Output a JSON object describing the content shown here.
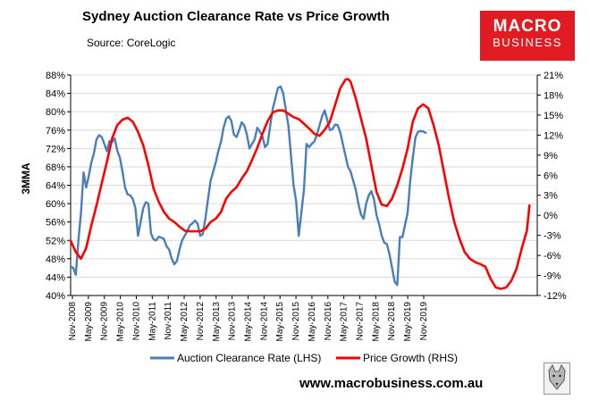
{
  "chart_data": {
    "type": "line",
    "title": "Sydney Auction Clearance Rate vs Price Growth",
    "subtitle": "Source: CoreLogic",
    "ylabel": "3MMA",
    "ylim_left": [
      40,
      88
    ],
    "ylim_right": [
      -12,
      21
    ],
    "y_ticks_left": [
      "88%",
      "84%",
      "80%",
      "76%",
      "72%",
      "68%",
      "64%",
      "60%",
      "56%",
      "52%",
      "48%",
      "44%",
      "40%"
    ],
    "y_ticks_right": [
      "21%",
      "18%",
      "15%",
      "12%",
      "9%",
      "6%",
      "3%",
      "0%",
      "-3%",
      "-6%",
      "-9%",
      "-12%"
    ],
    "x_ticks": [
      "Nov-2008",
      "May-2009",
      "Nov-2009",
      "May-2010",
      "Nov-2010",
      "May-2011",
      "Nov-2011",
      "May-2012",
      "Nov-2012",
      "May-2013",
      "Nov-2013",
      "May-2014",
      "Nov-2014",
      "May-2015",
      "Nov-2015",
      "May-2016",
      "Nov-2016",
      "May-2017",
      "Nov-2017",
      "May-2018",
      "Nov-2018",
      "May-2019",
      "Nov-2019"
    ],
    "grid": true,
    "legend_position": "bottom",
    "series": [
      {
        "name": "Auction Clearance Rate (LHS)",
        "axis": "left",
        "color": "#4a7ebb",
        "points": [
          [
            0,
            46.3
          ],
          [
            1,
            46
          ],
          [
            2,
            44.5
          ],
          [
            3,
            52
          ],
          [
            4,
            58
          ],
          [
            5,
            66.8
          ],
          [
            6,
            63.5
          ],
          [
            7,
            66
          ],
          [
            8,
            69
          ],
          [
            9,
            71
          ],
          [
            10,
            74
          ],
          [
            11,
            74.9
          ],
          [
            12,
            74.5
          ],
          [
            13,
            73
          ],
          [
            14,
            71.4
          ],
          [
            15,
            73.6
          ],
          [
            16,
            73.4
          ],
          [
            17,
            74.2
          ],
          [
            18,
            71.5
          ],
          [
            19,
            70
          ],
          [
            20,
            67
          ],
          [
            21,
            63.5
          ],
          [
            22,
            62
          ],
          [
            23,
            61.8
          ],
          [
            24,
            61
          ],
          [
            25,
            59
          ],
          [
            26,
            53
          ],
          [
            27,
            56
          ],
          [
            28,
            59
          ],
          [
            29,
            60.3
          ],
          [
            30,
            60
          ],
          [
            31,
            53.5
          ],
          [
            32,
            52.2
          ],
          [
            33,
            52
          ],
          [
            34,
            52.8
          ],
          [
            35,
            52.6
          ],
          [
            36,
            52.3
          ],
          [
            37,
            50.7
          ],
          [
            38,
            50
          ],
          [
            39,
            48
          ],
          [
            40,
            46.8
          ],
          [
            41,
            47.5
          ],
          [
            42,
            50
          ],
          [
            43,
            52
          ],
          [
            44,
            53
          ],
          [
            45,
            54
          ],
          [
            46,
            55.3
          ],
          [
            47,
            55.7
          ],
          [
            48,
            56.3
          ],
          [
            49,
            55.6
          ],
          [
            50,
            53
          ],
          [
            51,
            53.4
          ],
          [
            52,
            56.8
          ],
          [
            53,
            61
          ],
          [
            54,
            65
          ],
          [
            55,
            67
          ],
          [
            56,
            69
          ],
          [
            57,
            71.5
          ],
          [
            58,
            73.5
          ],
          [
            59,
            76.5
          ],
          [
            60,
            78.5
          ],
          [
            61,
            79
          ],
          [
            62,
            78
          ],
          [
            63,
            75
          ],
          [
            64,
            74.5
          ],
          [
            65,
            76
          ],
          [
            66,
            77.7
          ],
          [
            67,
            77
          ],
          [
            68,
            75
          ],
          [
            69,
            72
          ],
          [
            70,
            73
          ],
          [
            71,
            74
          ],
          [
            72,
            76.5
          ],
          [
            73,
            75.7
          ],
          [
            74,
            74.6
          ],
          [
            75,
            72.3
          ],
          [
            76,
            73
          ],
          [
            77,
            77
          ],
          [
            78,
            80.7
          ],
          [
            79,
            83
          ],
          [
            80,
            85.2
          ],
          [
            81,
            85.5
          ],
          [
            82,
            84
          ],
          [
            83,
            80.5
          ],
          [
            84,
            77
          ],
          [
            85,
            70.5
          ],
          [
            86,
            64
          ],
          [
            87,
            60.5
          ],
          [
            88,
            53
          ],
          [
            89,
            58
          ],
          [
            90,
            63
          ],
          [
            91,
            73
          ],
          [
            92,
            72.3
          ],
          [
            93,
            73
          ],
          [
            94,
            73.5
          ],
          [
            95,
            75
          ],
          [
            96,
            77
          ],
          [
            97,
            79
          ],
          [
            98,
            80.3
          ],
          [
            99,
            78.2
          ],
          [
            100,
            76
          ],
          [
            101,
            76.2
          ],
          [
            102,
            77.2
          ],
          [
            103,
            77.1
          ],
          [
            104,
            75.5
          ],
          [
            105,
            73
          ],
          [
            106,
            70.5
          ],
          [
            107,
            68
          ],
          [
            108,
            67
          ],
          [
            109,
            65
          ],
          [
            110,
            63
          ],
          [
            111,
            60
          ],
          [
            112,
            57.6
          ],
          [
            113,
            56.7
          ],
          [
            114,
            60
          ],
          [
            115,
            61.8
          ],
          [
            116,
            62.7
          ],
          [
            117,
            61
          ],
          [
            118,
            57.5
          ],
          [
            119,
            55.5
          ],
          [
            120,
            53
          ],
          [
            121,
            51.5
          ],
          [
            122,
            51.2
          ],
          [
            123,
            49
          ],
          [
            124,
            46
          ],
          [
            125,
            43
          ],
          [
            126,
            42.3
          ],
          [
            127,
            52.7
          ],
          [
            128,
            52.7
          ],
          [
            129,
            55.4
          ],
          [
            130,
            58
          ],
          [
            131,
            65
          ],
          [
            132,
            70
          ],
          [
            133,
            74.4
          ],
          [
            134,
            75.6
          ],
          [
            135,
            75.8
          ],
          [
            136,
            75.7
          ],
          [
            137,
            75.4
          ]
        ]
      },
      {
        "name": "Price Growth (RHS)",
        "axis": "right",
        "color": "#ff0000",
        "points": [
          [
            0,
            -3.8
          ],
          [
            2,
            -5.5
          ],
          [
            4,
            -6.5
          ],
          [
            6,
            -4.9
          ],
          [
            8,
            -1.5
          ],
          [
            10,
            1.5
          ],
          [
            12,
            4.8
          ],
          [
            14,
            8
          ],
          [
            16,
            11.5
          ],
          [
            18,
            13.5
          ],
          [
            20,
            14.3
          ],
          [
            22,
            14.6
          ],
          [
            24,
            14
          ],
          [
            26,
            12.5
          ],
          [
            28,
            10.5
          ],
          [
            30,
            7.5
          ],
          [
            32,
            4
          ],
          [
            34,
            2
          ],
          [
            36,
            0.5
          ],
          [
            38,
            -0.5
          ],
          [
            40,
            -1
          ],
          [
            42,
            -1.7
          ],
          [
            44,
            -2.3
          ],
          [
            46,
            -2.4
          ],
          [
            48,
            -2.4
          ],
          [
            50,
            -2.4
          ],
          [
            52,
            -2
          ],
          [
            54,
            -1
          ],
          [
            56,
            -0.5
          ],
          [
            58,
            0.5
          ],
          [
            60,
            2.5
          ],
          [
            62,
            3.5
          ],
          [
            64,
            4.2
          ],
          [
            66,
            5.5
          ],
          [
            68,
            6.6
          ],
          [
            70,
            8.3
          ],
          [
            72,
            10.1
          ],
          [
            74,
            12.2
          ],
          [
            76,
            14.1
          ],
          [
            78,
            15.4
          ],
          [
            80,
            15.7
          ],
          [
            82,
            15.7
          ],
          [
            84,
            15.2
          ],
          [
            86,
            14.7
          ],
          [
            88,
            14.4
          ],
          [
            90,
            13.7
          ],
          [
            92,
            13
          ],
          [
            94,
            12.2
          ],
          [
            96,
            11.9
          ],
          [
            98,
            12.8
          ],
          [
            100,
            14
          ],
          [
            102,
            16.5
          ],
          [
            104,
            19
          ],
          [
            106,
            20.3
          ],
          [
            107,
            20.4
          ],
          [
            108,
            20
          ],
          [
            110,
            17.5
          ],
          [
            112,
            14.5
          ],
          [
            114,
            11.5
          ],
          [
            116,
            7.5
          ],
          [
            118,
            3.5
          ],
          [
            120,
            1.6
          ],
          [
            122,
            1.4
          ],
          [
            124,
            2.5
          ],
          [
            126,
            4.5
          ],
          [
            128,
            7
          ],
          [
            130,
            10
          ],
          [
            132,
            14
          ],
          [
            134,
            16
          ],
          [
            136,
            16.6
          ],
          [
            138,
            16
          ],
          [
            140,
            13.5
          ],
          [
            142,
            10.5
          ],
          [
            144,
            6.5
          ],
          [
            146,
            2.5
          ],
          [
            148,
            -1
          ],
          [
            150,
            -3.5
          ],
          [
            152,
            -5.5
          ],
          [
            154,
            -6.5
          ],
          [
            156,
            -7
          ],
          [
            158,
            -7.3
          ],
          [
            160,
            -7.7
          ],
          [
            162,
            -9.5
          ],
          [
            164,
            -10.8
          ],
          [
            166,
            -11
          ],
          [
            168,
            -10.8
          ],
          [
            170,
            -9.8
          ],
          [
            172,
            -8
          ],
          [
            174,
            -5
          ],
          [
            176,
            -2.3
          ],
          [
            177,
            1.5
          ]
        ]
      }
    ],
    "x_count": 180
  },
  "logo": {
    "line1": "MACRO",
    "line2": "BUSINESS"
  },
  "website": "www.macrobusiness.com.au",
  "legend": {
    "items": [
      "Auction Clearance Rate (LHS)",
      "Price Growth (RHS)"
    ]
  }
}
